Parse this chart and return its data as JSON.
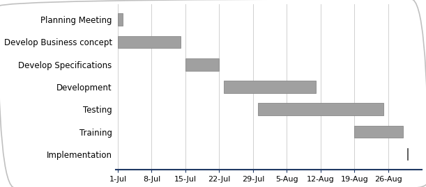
{
  "tasks": [
    "Planning Meeting",
    "Develop Business concept",
    "Develop Specifications",
    "Development",
    "Testing",
    "Training",
    "Implementation"
  ],
  "start_days": [
    0,
    0,
    14,
    22,
    29,
    49,
    60
  ],
  "durations": [
    1,
    13,
    7,
    19,
    26,
    10,
    0
  ],
  "bar_color": "#a0a0a0",
  "bar_edge_color": "#888888",
  "tick_labels": [
    "1-Jul",
    "8-Jul",
    "15-Jul",
    "22-Jul",
    "29-Jul",
    "5-Aug",
    "12-Aug",
    "19-Aug",
    "26-Aug"
  ],
  "tick_positions": [
    0,
    7,
    14,
    21,
    28,
    35,
    42,
    49,
    56
  ],
  "xlim": [
    -0.5,
    63
  ],
  "ylim": [
    -0.7,
    6.7
  ],
  "background_color": "#ffffff",
  "bar_height": 0.55,
  "implementation_x": 60,
  "border_color": "#c0c0c0",
  "spine_bottom_color": "#1f3864",
  "grid_color": "#d0d0d0",
  "label_fontsize": 8.5,
  "tick_fontsize": 8
}
